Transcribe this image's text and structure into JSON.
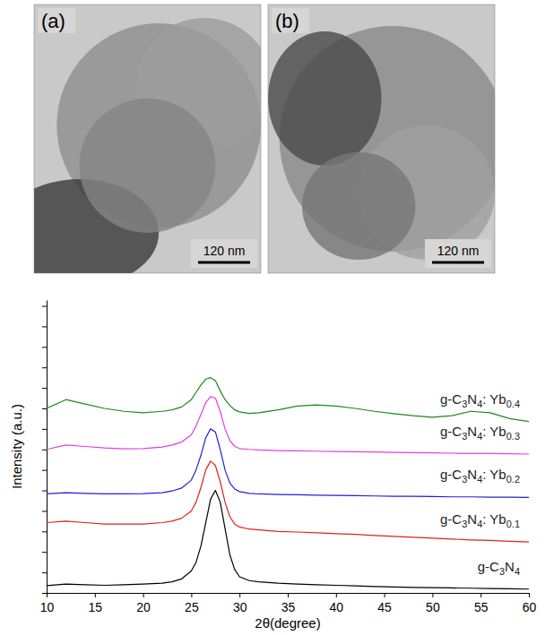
{
  "panels": [
    {
      "label": "(a)",
      "scale_bar": "120 nm"
    },
    {
      "label": "(b)",
      "scale_bar": "120 nm"
    }
  ],
  "chart_data": {
    "type": "line",
    "x_label": "2θ(degree)",
    "y_label": "Intensity (a.u.)",
    "xlim": [
      10,
      60
    ],
    "xticks": [
      10,
      15,
      20,
      25,
      30,
      35,
      40,
      45,
      50,
      55,
      60
    ],
    "ylim": [
      0,
      100
    ],
    "yticks": [
      0,
      7,
      14,
      21,
      28,
      35,
      42,
      49,
      56,
      63,
      70,
      77,
      84,
      91,
      98
    ],
    "tick_labels": "x",
    "grid": false,
    "x": [
      10,
      12,
      14,
      16,
      18,
      20,
      22,
      23,
      24,
      25,
      25.5,
      26,
      26.5,
      27,
      27.5,
      28,
      28.5,
      29,
      29.5,
      30,
      31,
      32,
      34,
      36,
      38,
      40,
      42,
      44,
      46,
      48,
      50,
      52,
      54,
      56,
      58,
      60
    ],
    "series": [
      {
        "name": "g-C3N4",
        "color": "#000000",
        "values": [
          2.5,
          3.0,
          2.8,
          2.6,
          2.8,
          3.0,
          3.3,
          3.8,
          4.8,
          7.5,
          10.5,
          16,
          24,
          32,
          35,
          31,
          22,
          13,
          8,
          5.5,
          4.2,
          3.8,
          3.3,
          3.0,
          2.8,
          2.6,
          2.4,
          2.2,
          2.0,
          1.9,
          1.8,
          1.7,
          1.6,
          1.5,
          1.4,
          1.3
        ]
      },
      {
        "name": "g-C3N4: Yb0.1",
        "color": "#e02020",
        "values": [
          24,
          24.5,
          24,
          23.5,
          23.5,
          23.5,
          24,
          24.5,
          25.5,
          28,
          31,
          36,
          42,
          45,
          43.5,
          38,
          31,
          26,
          23.5,
          22.5,
          21.8,
          21.5,
          21,
          20.8,
          20.5,
          20.2,
          20,
          19.6,
          19.3,
          19,
          18.7,
          18.4,
          18.1,
          17.9,
          17.6,
          17.4
        ]
      },
      {
        "name": "g-C3N4: Yb0.2",
        "color": "#2020e0",
        "values": [
          33.8,
          34.2,
          34,
          33.8,
          33.8,
          33.9,
          34.2,
          34.8,
          35.8,
          38.5,
          42,
          47,
          53,
          56,
          55,
          49,
          42,
          37.5,
          35.5,
          34.6,
          34,
          33.8,
          33.6,
          33.5,
          33.4,
          33.3,
          33.2,
          33.1,
          33,
          33,
          32.9,
          32.8,
          32.8,
          32.7,
          32.7,
          32.6
        ]
      },
      {
        "name": "g-C3N4: Yb0.3",
        "color": "#e040e0",
        "values": [
          49,
          50.5,
          50,
          49.5,
          49.2,
          49.3,
          49.8,
          50.5,
          51.5,
          54,
          57,
          61,
          65,
          67,
          66.5,
          62,
          56,
          52,
          50,
          49.3,
          49,
          48.8,
          48.6,
          48.5,
          48.4,
          48.3,
          48.2,
          48.1,
          48,
          47.9,
          47.8,
          47.7,
          47.6,
          47.6,
          47.5,
          47.4
        ]
      },
      {
        "name": "g-C3N4: Yb0.4",
        "color": "#1a8a1a",
        "values": [
          63,
          66,
          64.5,
          63,
          62,
          61.5,
          62,
          62.5,
          63.5,
          66,
          68.5,
          71,
          73,
          73.5,
          72.5,
          69,
          66,
          64,
          62.5,
          61.8,
          61.3,
          61.5,
          62.5,
          63.8,
          64.2,
          63.8,
          63,
          62,
          61.2,
          60.5,
          60,
          60.5,
          62,
          61.5,
          59.5,
          58.5
        ]
      }
    ]
  }
}
